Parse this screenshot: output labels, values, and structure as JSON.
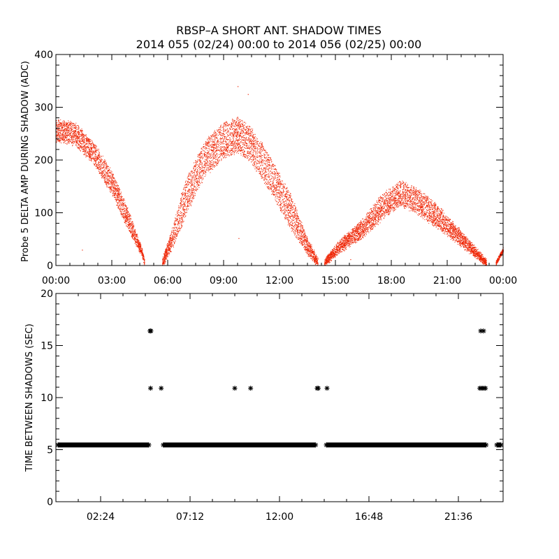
{
  "title_line1": "RBSP–A SHORT ANT. SHADOW TIMES",
  "title_line2": "2014 055 (02/24) 00:00 to 2014 056 (02/25) 00:00",
  "colors": {
    "amp_points": "#ee2200",
    "dt_points": "#000000",
    "axes": "#000000",
    "background": "#ffffff"
  },
  "chart_data": [
    {
      "type": "scatter",
      "name": "top-panel",
      "ylabel": "Probe 5 DELTA AMP DURING SHADOW (ADC)",
      "xlabel": "",
      "xlim_hours": [
        0,
        24
      ],
      "ylim": [
        0,
        400
      ],
      "x_ticks": [
        {
          "h": 0,
          "label": "00:00"
        },
        {
          "h": 3,
          "label": "03:00"
        },
        {
          "h": 6,
          "label": "06:00"
        },
        {
          "h": 9,
          "label": "09:00"
        },
        {
          "h": 12,
          "label": "12:00"
        },
        {
          "h": 15,
          "label": "15:00"
        },
        {
          "h": 18,
          "label": "18:00"
        },
        {
          "h": 21,
          "label": "21:00"
        },
        {
          "h": 24,
          "label": "00:00"
        }
      ],
      "y_ticks": [
        0,
        100,
        200,
        300,
        400
      ],
      "lobes": [
        {
          "start": 0.0,
          "end": 4.75,
          "peak_t": 0.4,
          "env": [
            [
              0.0,
              255
            ],
            [
              1.0,
              248
            ],
            [
              2.0,
              212
            ],
            [
              3.0,
              155
            ],
            [
              4.0,
              75
            ],
            [
              4.6,
              25
            ],
            [
              4.75,
              5
            ]
          ],
          "spread": 40
        },
        {
          "start": 5.7,
          "end": 14.05,
          "peak_t": 9.4,
          "env": [
            [
              5.7,
              5
            ],
            [
              6.3,
              55
            ],
            [
              7.0,
              130
            ],
            [
              8.0,
              200
            ],
            [
              9.0,
              235
            ],
            [
              9.8,
              245
            ],
            [
              10.5,
              225
            ],
            [
              11.5,
              170
            ],
            [
              12.5,
              105
            ],
            [
              13.5,
              35
            ],
            [
              14.05,
              5
            ]
          ],
          "spread": 65
        },
        {
          "start": 14.4,
          "end": 23.1,
          "peak_t": 18.3,
          "env": [
            [
              14.4,
              5
            ],
            [
              15.2,
              35
            ],
            [
              16.5,
              70
            ],
            [
              17.5,
              110
            ],
            [
              18.5,
              135
            ],
            [
              19.5,
              118
            ],
            [
              20.5,
              90
            ],
            [
              21.5,
              58
            ],
            [
              22.5,
              25
            ],
            [
              23.1,
              5
            ]
          ],
          "spread": 45
        },
        {
          "start": 23.6,
          "end": 24.0,
          "peak_t": 24.0,
          "env": [
            [
              23.6,
              5
            ],
            [
              24.0,
              30
            ]
          ],
          "spread": 8
        }
      ],
      "outliers": [
        {
          "t": 1.4,
          "v": 30
        },
        {
          "t": 9.8,
          "v": 52
        },
        {
          "t": 9.75,
          "v": 340
        },
        {
          "t": 10.3,
          "v": 325
        },
        {
          "t": 15.8,
          "v": 12
        }
      ]
    },
    {
      "type": "scatter",
      "name": "bottom-panel",
      "ylabel": "TIME BETWEEN SHADOWS (SEC)",
      "xlabel": "",
      "xlim_hours": [
        0,
        24
      ],
      "ylim": [
        0,
        20
      ],
      "x_ticks": [
        {
          "h": 2.4,
          "label": "02:24"
        },
        {
          "h": 7.2,
          "label": "07:12"
        },
        {
          "h": 12.0,
          "label": "12:00"
        },
        {
          "h": 16.8,
          "label": "16:48"
        },
        {
          "h": 21.6,
          "label": "21:36"
        }
      ],
      "y_ticks": [
        0,
        5,
        10,
        15,
        20
      ],
      "baseline_value": 5.45,
      "baseline_segments": [
        [
          0.0,
          5.1
        ],
        [
          5.65,
          14.05
        ],
        [
          14.4,
          23.2
        ],
        [
          23.55,
          24.0
        ]
      ],
      "points": [
        {
          "t": 5.05,
          "v": 16.4
        },
        {
          "t": 5.1,
          "v": 16.4
        },
        {
          "t": 5.08,
          "v": 10.9
        },
        {
          "t": 5.65,
          "v": 10.9
        },
        {
          "t": 9.6,
          "v": 10.9
        },
        {
          "t": 10.45,
          "v": 10.9
        },
        {
          "t": 14.02,
          "v": 10.9
        },
        {
          "t": 14.08,
          "v": 10.9
        },
        {
          "t": 14.55,
          "v": 10.9
        },
        {
          "t": 22.8,
          "v": 16.4
        },
        {
          "t": 22.95,
          "v": 16.4
        },
        {
          "t": 22.75,
          "v": 10.9
        },
        {
          "t": 22.82,
          "v": 10.9
        },
        {
          "t": 22.9,
          "v": 10.9
        },
        {
          "t": 22.98,
          "v": 10.9
        },
        {
          "t": 23.05,
          "v": 10.9
        }
      ]
    }
  ]
}
